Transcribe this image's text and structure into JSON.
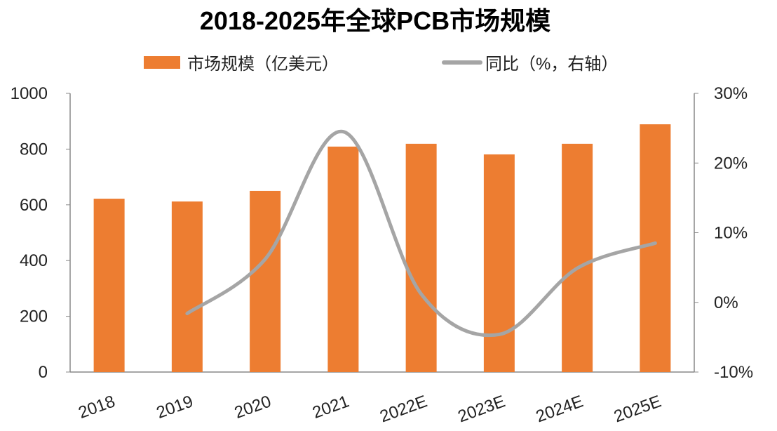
{
  "chart_data": {
    "type": "bar",
    "title": "2018-2025年全球PCB市场规模",
    "categories": [
      "2018",
      "2019",
      "2020",
      "2021",
      "2022E",
      "2023E",
      "2024E",
      "2025E"
    ],
    "series": [
      {
        "name": "市场规模（亿美元）",
        "type": "bar",
        "axis": "left",
        "color": "#ED7D31",
        "values": [
          622,
          612,
          650,
          809,
          819,
          781,
          819,
          889
        ]
      },
      {
        "name": "同比（%，右轴）",
        "type": "line",
        "axis": "right",
        "color": "#A5A5A5",
        "smooth": true,
        "values": [
          null,
          -1.6,
          6.2,
          24.5,
          1.2,
          -4.6,
          4.9,
          8.5
        ]
      }
    ],
    "ylim_left": [
      0,
      1000
    ],
    "yticks_left": [
      "0",
      "200",
      "400",
      "600",
      "800",
      "1000"
    ],
    "ylim_right": [
      -10,
      30
    ],
    "yticks_right": [
      "-10%",
      "0%",
      "10%",
      "20%",
      "30%"
    ],
    "legend": "top",
    "grid": false
  }
}
